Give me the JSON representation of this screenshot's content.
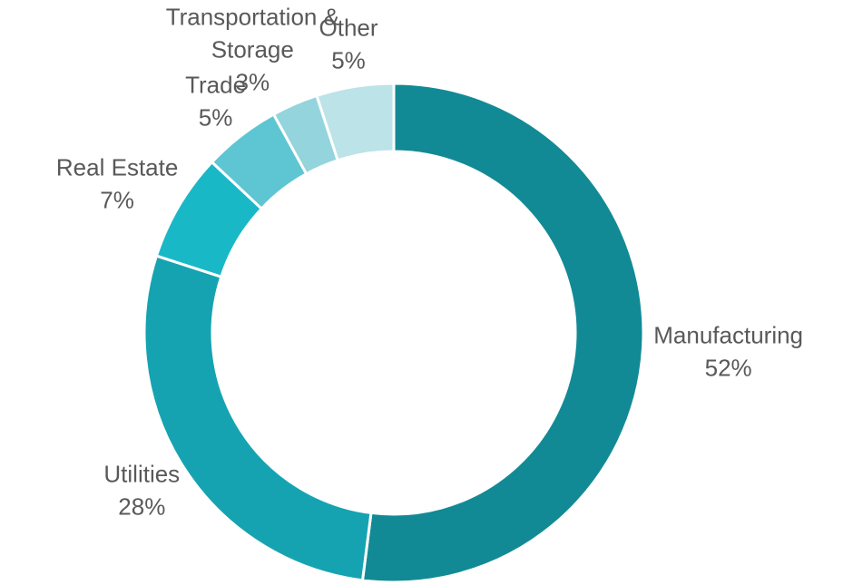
{
  "chart_data": {
    "type": "donut",
    "categories": [
      "Manufacturing",
      "Utilities",
      "Real Estate",
      "Trade",
      "Transportation & Storage",
      "Other"
    ],
    "values": [
      52,
      28,
      7,
      5,
      3,
      5
    ],
    "value_labels": [
      "52%",
      "28%",
      "7%",
      "5%",
      "3%",
      "5%"
    ],
    "colors": [
      "#128a95",
      "#16a3b1",
      "#19b8c7",
      "#5ec6d2",
      "#94d4dc",
      "#bce3e8"
    ]
  }
}
